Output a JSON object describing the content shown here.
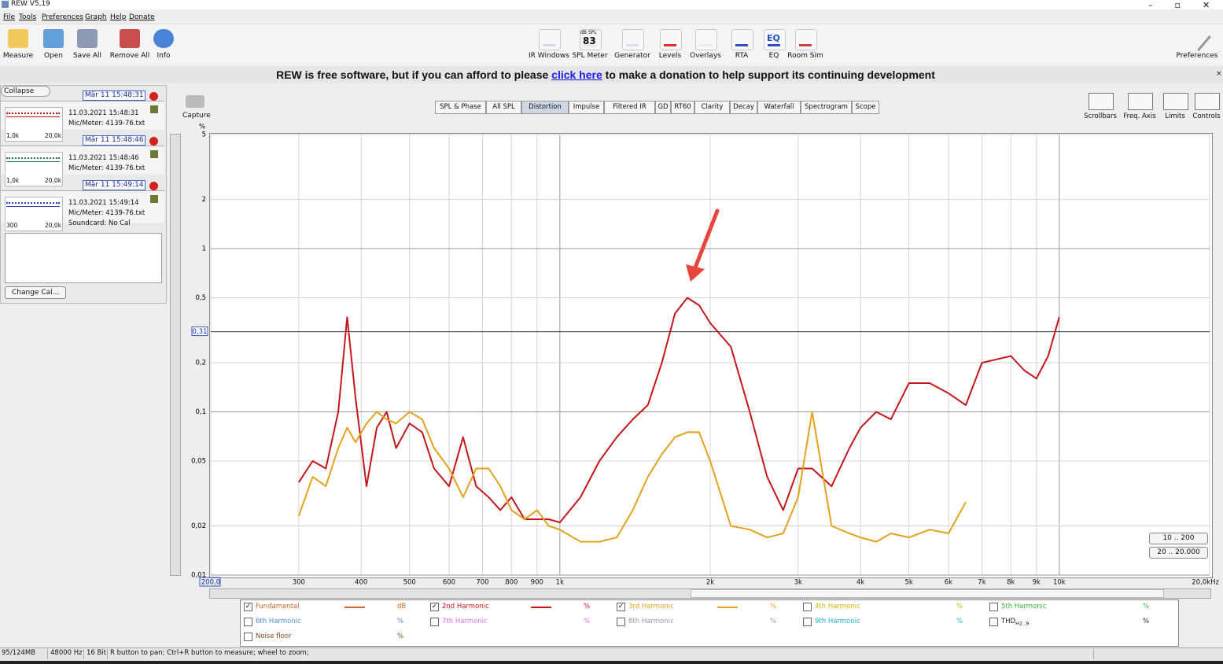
{
  "window": {
    "title": "REW V5,19"
  },
  "menu": [
    "File",
    "Tools",
    "Preferences",
    "Graph",
    "Help",
    "Donate"
  ],
  "toolbar": {
    "left": [
      "Measure",
      "Open",
      "Save All",
      "Remove All",
      "Info"
    ],
    "center": [
      "IR Windows",
      "SPL Meter",
      "Generator",
      "Levels",
      "Overlays",
      "RTA",
      "EQ",
      "Room Sim"
    ],
    "right": [
      "Preferences"
    ],
    "spl_meter_display": {
      "unit": "dB SPL",
      "reading": "83"
    },
    "eq_icon": "EQ"
  },
  "banner": {
    "before": "REW is free software, but if you can afford to please",
    "link": "click here",
    "after": "to make a donation to help support its continuing development"
  },
  "measurements": {
    "collapse": "Collapse",
    "items": [
      {
        "name": "Mär 11 15:48:31",
        "date": "11.03.2021 15:48:31",
        "mic": "Mic/Meter: 4139-76.txt",
        "range_lo": "1,0k",
        "range_hi": "20,0k"
      },
      {
        "name": "Mär 11 15:48:46",
        "date": "11.03.2021 15:48:46",
        "mic": "Mic/Meter: 4139-76.txt",
        "range_lo": "1,0k",
        "range_hi": "20,0k"
      },
      {
        "name": "Mär 11 15:49:14",
        "date": "11.03.2021 15:49:14",
        "mic": "Mic/Meter: 4139-76.txt",
        "soundcard": "Soundcard: No Cal",
        "range_lo": "300",
        "range_hi": "20,0k"
      }
    ],
    "change_cal": "Change Cal..."
  },
  "capture": "Capture",
  "tabs": [
    "SPL & Phase",
    "All SPL",
    "Distortion",
    "Impulse",
    "Filtered IR",
    "GD",
    "RT60",
    "Clarity",
    "Decay",
    "Waterfall",
    "Spectrogram",
    "Scope"
  ],
  "graph_controls": [
    "Scrollbars",
    "Freq. Axis",
    "Limits",
    "Controls"
  ],
  "range_buttons": [
    "10 .. 200",
    "20 .. 20.000"
  ],
  "chart_data": {
    "type": "line",
    "y_unit": "%",
    "xscale": "log",
    "yscale": "log",
    "grid": true,
    "xlim": [
      200,
      20000
    ],
    "ylim": [
      0.01,
      5
    ],
    "xticks": [
      {
        "value": 200,
        "label": "200,0"
      },
      300,
      400,
      500,
      600,
      700,
      800,
      900,
      {
        "value": 1000,
        "label": "1k"
      },
      {
        "value": 2000,
        "label": "2k"
      },
      {
        "value": 3000,
        "label": "3k"
      },
      {
        "value": 4000,
        "label": "4k"
      },
      {
        "value": 5000,
        "label": "5k"
      },
      {
        "value": 6000,
        "label": "6k"
      },
      {
        "value": 7000,
        "label": "7k"
      },
      {
        "value": 8000,
        "label": "8k"
      },
      {
        "value": 9000,
        "label": "9k"
      },
      {
        "value": 10000,
        "label": "10k"
      },
      {
        "value": 20000,
        "label": "20,0kHz"
      }
    ],
    "yticks": [
      5,
      2,
      1,
      {
        "value": 0.5,
        "label": "0,5"
      },
      {
        "value": 0.2,
        "label": "0,2"
      },
      {
        "value": 0.1,
        "label": "0,1"
      },
      {
        "value": 0.05,
        "label": "0,05"
      },
      {
        "value": 0.02,
        "label": "0,02"
      },
      {
        "value": 0.01,
        "label": "0,01"
      }
    ],
    "cursor": {
      "value": 0.31,
      "label": "0,31"
    },
    "x": [
      300,
      320,
      340,
      360,
      375,
      390,
      410,
      430,
      450,
      470,
      500,
      530,
      560,
      600,
      640,
      680,
      720,
      760,
      800,
      850,
      900,
      950,
      1000,
      1100,
      1200,
      1300,
      1400,
      1500,
      1600,
      1700,
      1800,
      1900,
      2000,
      2200,
      2400,
      2600,
      2800,
      3000,
      3200,
      3500,
      3800,
      4000,
      4300,
      4600,
      5000,
      5500,
      6000,
      6500,
      7000,
      7500,
      8000,
      8500,
      9000,
      9500,
      10000
    ],
    "series": [
      {
        "name": "2nd Harmonic",
        "unit": "%",
        "color": "#c4161c",
        "checked": true,
        "values": [
          0.037,
          0.05,
          0.045,
          0.1,
          0.38,
          0.12,
          0.035,
          0.08,
          0.1,
          0.06,
          0.085,
          0.075,
          0.045,
          0.035,
          0.07,
          0.035,
          0.03,
          0.025,
          0.03,
          0.022,
          0.022,
          0.022,
          0.021,
          0.03,
          0.05,
          0.07,
          0.09,
          0.11,
          0.2,
          0.4,
          0.5,
          0.45,
          0.35,
          0.25,
          0.1,
          0.04,
          0.025,
          0.045,
          0.045,
          0.035,
          0.06,
          0.08,
          0.1,
          0.09,
          0.15,
          0.15,
          0.13,
          0.11,
          0.2,
          0.21,
          0.22,
          0.18,
          0.16,
          0.22,
          0.38
        ]
      },
      {
        "name": "3rd Harmonic",
        "unit": "%",
        "color": "#e3a21a",
        "checked": true,
        "values": [
          0.023,
          0.04,
          0.035,
          0.06,
          0.08,
          0.065,
          0.085,
          0.1,
          0.09,
          0.085,
          0.1,
          0.09,
          0.06,
          0.045,
          0.03,
          0.045,
          0.045,
          0.035,
          0.025,
          0.022,
          0.025,
          0.02,
          0.019,
          0.016,
          0.016,
          0.017,
          0.025,
          0.04,
          0.055,
          0.07,
          0.075,
          0.075,
          0.05,
          0.02,
          0.019,
          0.017,
          0.018,
          0.03,
          0.1,
          0.02,
          0.018,
          0.017,
          0.016,
          0.018,
          0.017,
          0.019,
          0.018,
          0.028,
          null,
          null,
          null,
          null,
          null,
          null,
          null
        ]
      }
    ],
    "legend_other": [
      {
        "name": "Fundamental",
        "unit": "dB",
        "color": "#c8662a",
        "checked": true
      },
      {
        "name": "4th Harmonic",
        "unit": "%",
        "color": "#d2b400",
        "checked": false
      },
      {
        "name": "5th Harmonic",
        "unit": "%",
        "color": "#3cb43c",
        "checked": false
      },
      {
        "name": "6th Harmonic",
        "unit": "%",
        "color": "#4a8ee0",
        "checked": false
      },
      {
        "name": "7th Harmonic",
        "unit": "%",
        "color": "#e070e0",
        "checked": false
      },
      {
        "name": "8th Harmonic",
        "unit": "%",
        "color": "#9a9a9a",
        "checked": false
      },
      {
        "name": "9th Harmonic",
        "unit": "%",
        "color": "#1cb4d4",
        "checked": false
      },
      {
        "name": "THD",
        "sub": "H2..9",
        "unit": "%",
        "color": "#222222",
        "checked": false
      },
      {
        "name": "Noise floor",
        "unit": "%",
        "color": "#8a4a1a",
        "checked": false
      }
    ]
  },
  "status": [
    "95/124MB",
    "48000 Hz",
    "16 Bit",
    "R button to pan; Ctrl+R button to measure; wheel to zoom;"
  ]
}
